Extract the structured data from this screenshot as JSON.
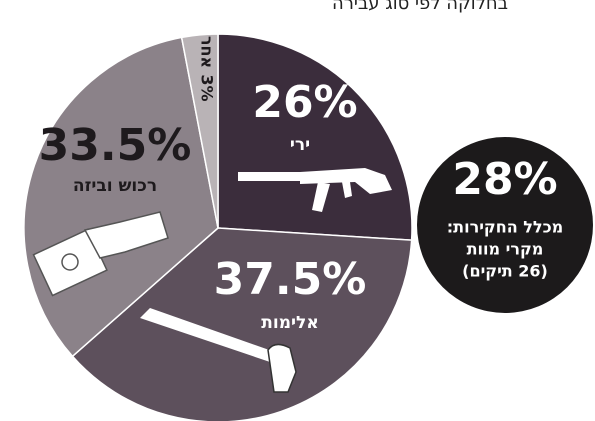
{
  "chart_data": {
    "type": "pie",
    "title": "בחלוקה לפי סוג עבירה",
    "categories": [
      "ירי",
      "אלימות",
      "רכוש וביזה",
      "אחר"
    ],
    "values": [
      26,
      37.5,
      33.5,
      3
    ],
    "value_labels": [
      "26%",
      "37.5%",
      "33.5%",
      "3%"
    ],
    "colors": [
      "#3b2d3c",
      "#5d505c",
      "#8b8289",
      "#b9b3b6"
    ],
    "callout": {
      "value": 28,
      "value_label": "28%",
      "lines": [
        "מכלל החקירות:",
        "מקרי מוות",
        "(26 תיקים)"
      ],
      "color": "#1c1a1b"
    }
  }
}
